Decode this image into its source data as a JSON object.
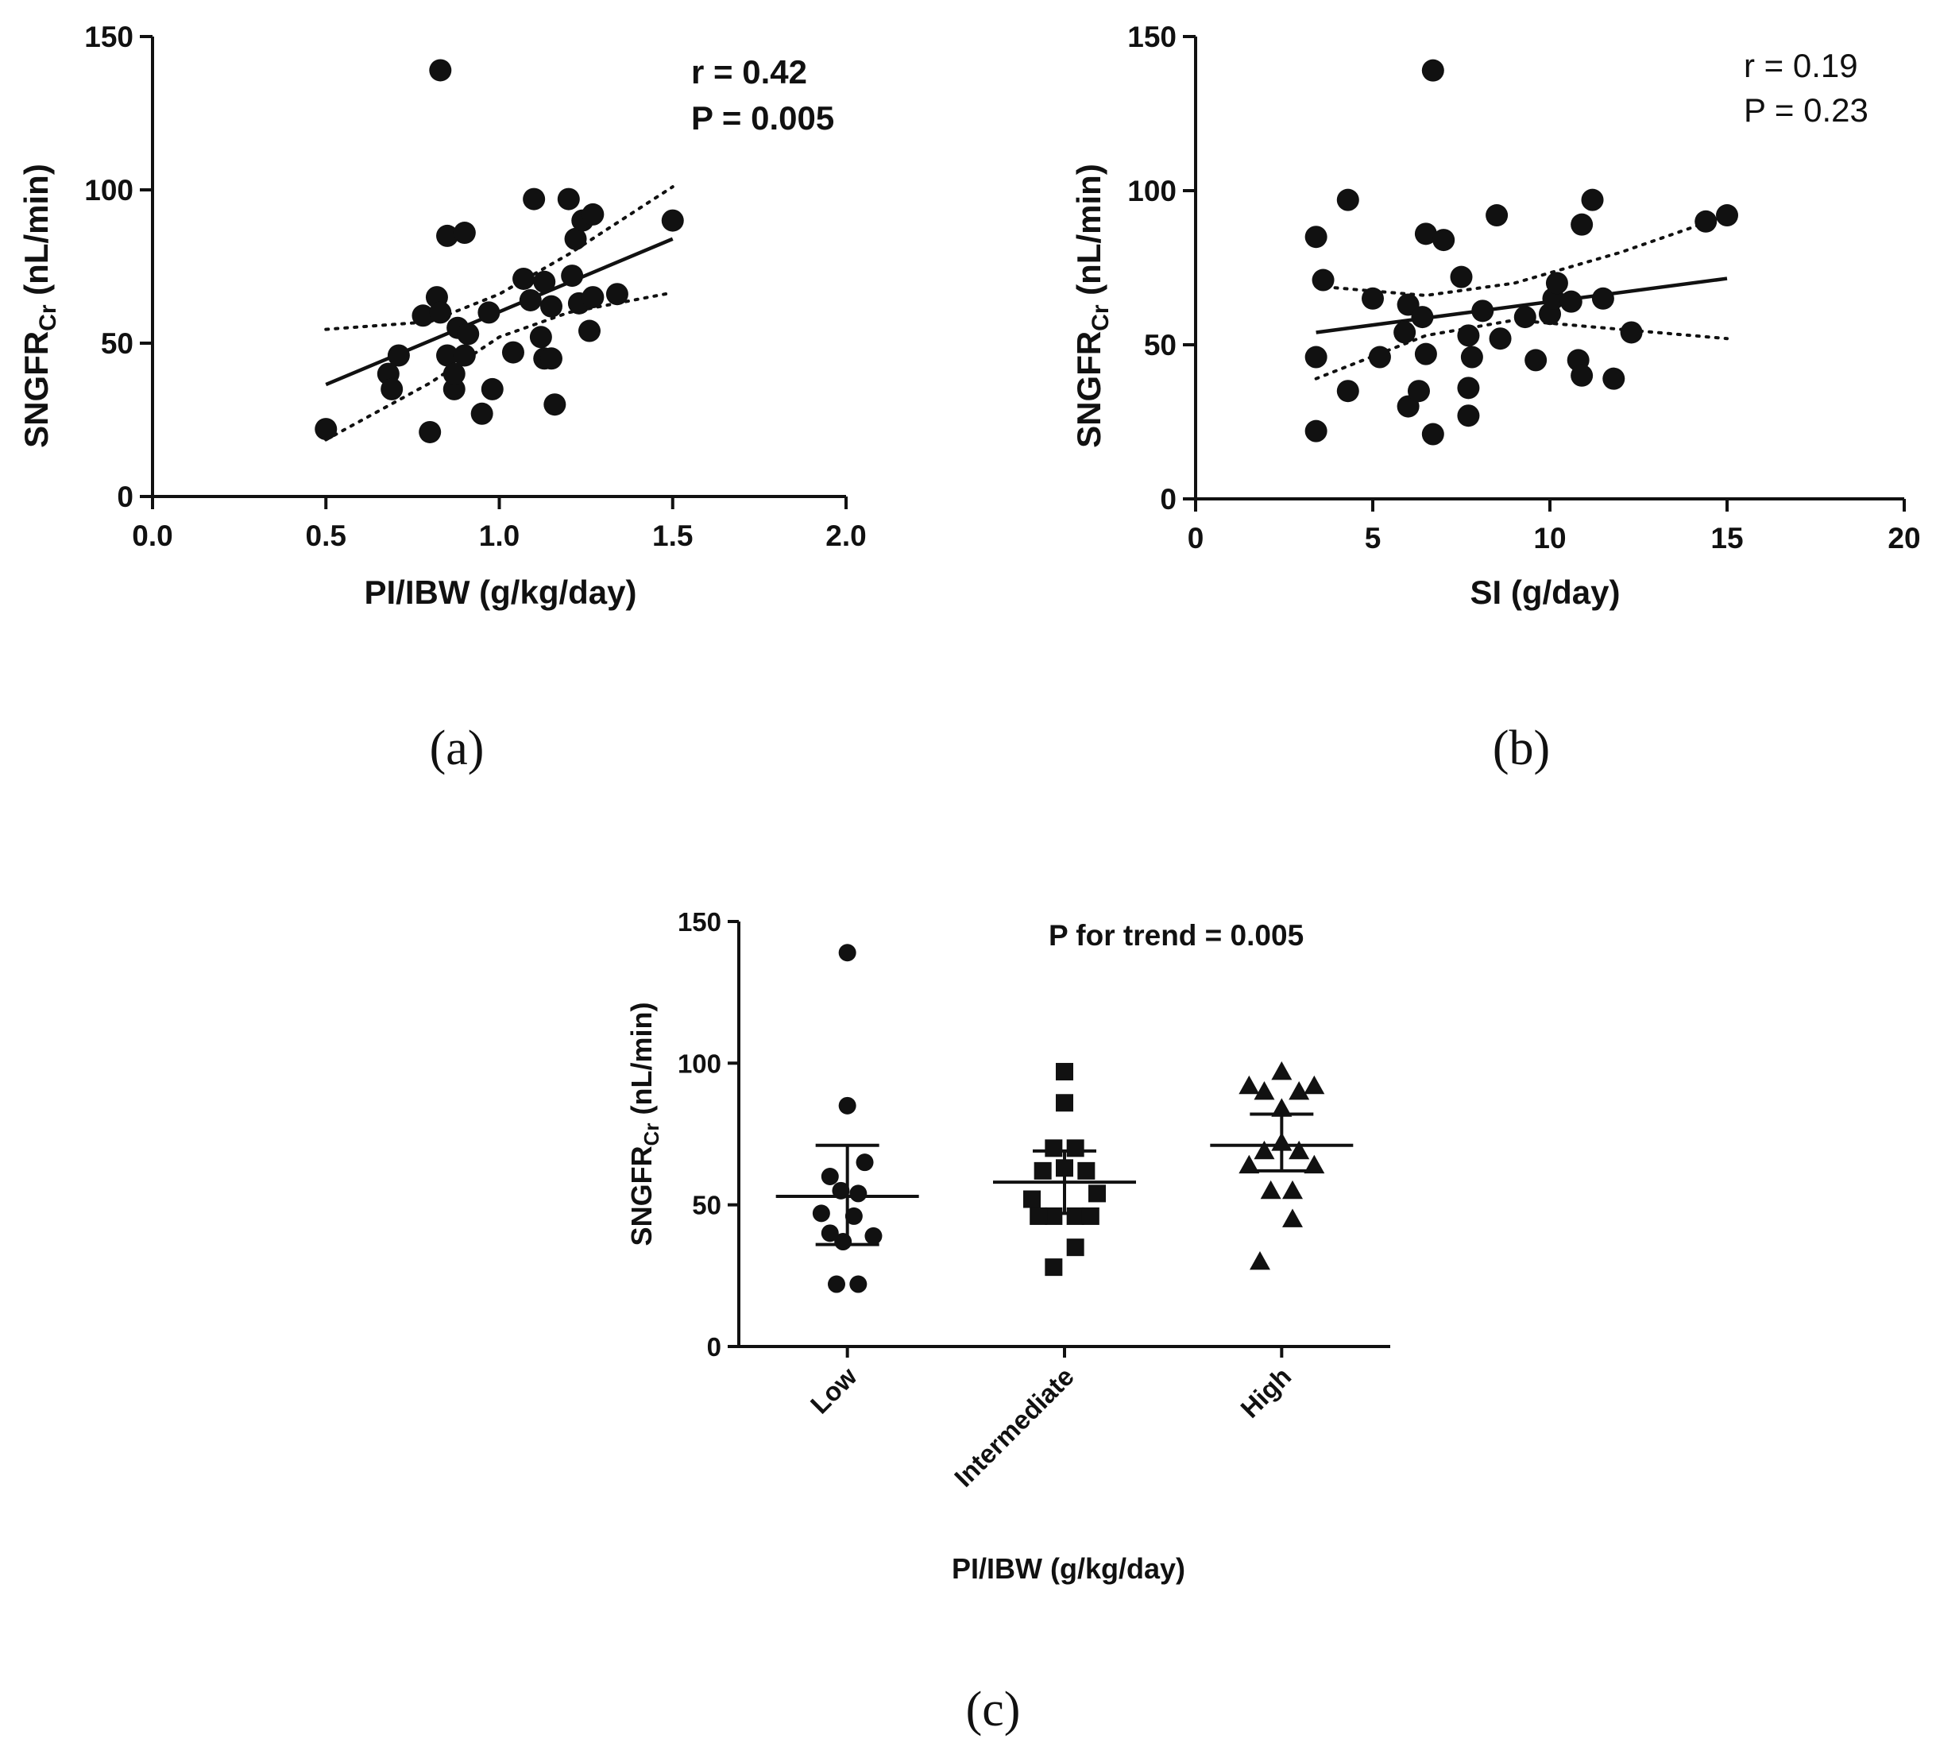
{
  "chart_data": [
    {
      "id": "a",
      "type": "scatter",
      "panel_label": "(a)",
      "xlabel": "PI/IBW (g/kg/day)",
      "ylabel_main": "SNGFR",
      "ylabel_sub": "Cr",
      "ylabel_unit": " (nL/min)",
      "xlim": [
        0.0,
        2.0
      ],
      "ylim": [
        0,
        150
      ],
      "xticks": [
        0.0,
        0.5,
        1.0,
        1.5,
        2.0
      ],
      "xtick_labels": [
        "0.0",
        "0.5",
        "1.0",
        "1.5",
        "2.0"
      ],
      "yticks": [
        0,
        50,
        100,
        150
      ],
      "ytick_labels": [
        "0",
        "50",
        "100",
        "150"
      ],
      "stats": [
        "r = 0.42",
        "P = 0.005"
      ],
      "stats_bold": true,
      "points": [
        [
          0.5,
          22
        ],
        [
          0.68,
          40
        ],
        [
          0.69,
          35
        ],
        [
          0.71,
          46
        ],
        [
          0.78,
          59
        ],
        [
          0.8,
          21
        ],
        [
          0.82,
          65
        ],
        [
          0.83,
          60
        ],
        [
          0.83,
          139
        ],
        [
          0.85,
          46
        ],
        [
          0.85,
          85
        ],
        [
          0.87,
          35
        ],
        [
          0.87,
          40
        ],
        [
          0.88,
          55
        ],
        [
          0.9,
          46
        ],
        [
          0.9,
          86
        ],
        [
          0.91,
          53
        ],
        [
          0.95,
          27
        ],
        [
          0.97,
          60
        ],
        [
          0.98,
          35
        ],
        [
          1.04,
          47
        ],
        [
          1.07,
          71
        ],
        [
          1.09,
          64
        ],
        [
          1.1,
          97
        ],
        [
          1.12,
          52
        ],
        [
          1.13,
          45
        ],
        [
          1.13,
          70
        ],
        [
          1.15,
          62
        ],
        [
          1.15,
          45
        ],
        [
          1.16,
          30
        ],
        [
          1.2,
          97
        ],
        [
          1.21,
          72
        ],
        [
          1.22,
          84
        ],
        [
          1.23,
          63
        ],
        [
          1.24,
          90
        ],
        [
          1.26,
          54
        ],
        [
          1.27,
          92
        ],
        [
          1.27,
          65
        ],
        [
          1.34,
          66
        ],
        [
          1.5,
          90
        ]
      ],
      "fit": [
        [
          0.5,
          36.5
        ],
        [
          1.5,
          84
        ]
      ],
      "ci_upper": [
        [
          0.5,
          54.5
        ],
        [
          0.8,
          57
        ],
        [
          1.0,
          66
        ],
        [
          1.2,
          79
        ],
        [
          1.5,
          101
        ]
      ],
      "ci_lower": [
        [
          0.5,
          18.5
        ],
        [
          0.8,
          37
        ],
        [
          1.0,
          52
        ],
        [
          1.2,
          60
        ],
        [
          1.5,
          66.5
        ]
      ]
    },
    {
      "id": "b",
      "type": "scatter",
      "panel_label": "(b)",
      "xlabel": "SI (g/day)",
      "ylabel_main": "SNGFR",
      "ylabel_sub": "Cr",
      "ylabel_unit": " (nL/min)",
      "xlim": [
        0,
        20
      ],
      "ylim": [
        0,
        150
      ],
      "xticks": [
        0,
        5,
        10,
        15,
        20
      ],
      "xtick_labels": [
        "0",
        "5",
        "10",
        "15",
        "20"
      ],
      "yticks": [
        0,
        50,
        100,
        150
      ],
      "ytick_labels": [
        "0",
        "50",
        "100",
        "150"
      ],
      "stats": [
        "r = 0.19",
        "P = 0.23"
      ],
      "stats_bold": false,
      "points": [
        [
          3.4,
          22
        ],
        [
          3.4,
          46
        ],
        [
          3.4,
          85
        ],
        [
          3.6,
          71
        ],
        [
          4.3,
          97
        ],
        [
          4.3,
          35
        ],
        [
          5.0,
          65
        ],
        [
          5.2,
          46
        ],
        [
          5.9,
          54
        ],
        [
          6.0,
          30
        ],
        [
          6.0,
          63
        ],
        [
          6.3,
          35
        ],
        [
          6.4,
          59
        ],
        [
          6.5,
          86
        ],
        [
          6.5,
          47
        ],
        [
          6.7,
          21
        ],
        [
          6.7,
          139
        ],
        [
          7.0,
          84
        ],
        [
          7.5,
          72
        ],
        [
          7.7,
          53
        ],
        [
          7.7,
          36
        ],
        [
          7.7,
          27
        ],
        [
          7.8,
          46
        ],
        [
          8.1,
          61
        ],
        [
          8.5,
          92
        ],
        [
          8.6,
          52
        ],
        [
          9.3,
          59
        ],
        [
          9.6,
          45
        ],
        [
          10.0,
          60
        ],
        [
          10.1,
          65
        ],
        [
          10.2,
          70
        ],
        [
          10.6,
          64
        ],
        [
          10.8,
          45
        ],
        [
          10.9,
          40
        ],
        [
          10.9,
          89
        ],
        [
          11.2,
          97
        ],
        [
          11.5,
          65
        ],
        [
          11.8,
          39
        ],
        [
          12.3,
          54
        ],
        [
          14.4,
          90
        ],
        [
          15.0,
          92
        ]
      ],
      "fit": [
        [
          3.4,
          54
        ],
        [
          15.0,
          71.5
        ]
      ],
      "ci_upper": [
        [
          3.4,
          69
        ],
        [
          6.5,
          66
        ],
        [
          9.0,
          70
        ],
        [
          12.0,
          80
        ],
        [
          15.0,
          92
        ]
      ],
      "ci_lower": [
        [
          3.4,
          39
        ],
        [
          6.5,
          53
        ],
        [
          9.0,
          58
        ],
        [
          12.0,
          55
        ],
        [
          15.0,
          52
        ]
      ]
    },
    {
      "id": "c",
      "type": "scatter",
      "panel_label": "(c)",
      "xlabel": "PI/IBW (g/kg/day)",
      "ylabel_main": "SNGFR",
      "ylabel_sub": "Cr",
      "ylabel_unit": " (nL/min)",
      "ylim": [
        0,
        150
      ],
      "yticks": [
        0,
        50,
        100,
        150
      ],
      "ytick_labels": [
        "0",
        "50",
        "100",
        "150"
      ],
      "stats": [
        "P for trend = 0.005"
      ],
      "stats_bold": true,
      "categories": [
        "Low",
        "Intermediate",
        "High"
      ],
      "groups": [
        {
          "name": "Low",
          "marker": "circle",
          "mean": 53,
          "err_low": 36,
          "err_high": 71,
          "points": [
            [
              -0.08,
              60
            ],
            [
              0.08,
              65
            ],
            [
              -0.03,
              55
            ],
            [
              0.05,
              54
            ],
            [
              -0.12,
              47
            ],
            [
              0.03,
              46
            ],
            [
              -0.08,
              40
            ],
            [
              0.12,
              39
            ],
            [
              -0.02,
              37
            ],
            [
              0.0,
              85
            ],
            [
              0.0,
              139
            ],
            [
              -0.05,
              22
            ],
            [
              0.05,
              22
            ]
          ]
        },
        {
          "name": "Intermediate",
          "marker": "square",
          "mean": 58,
          "err_low": 47,
          "err_high": 69,
          "points": [
            [
              0.0,
              97
            ],
            [
              0.0,
              86
            ],
            [
              -0.05,
              70
            ],
            [
              0.05,
              70
            ],
            [
              -0.1,
              62
            ],
            [
              0.0,
              63
            ],
            [
              0.1,
              62
            ],
            [
              -0.15,
              52
            ],
            [
              0.15,
              54
            ],
            [
              -0.05,
              46
            ],
            [
              0.05,
              46
            ],
            [
              -0.12,
              46
            ],
            [
              0.12,
              46
            ],
            [
              0.05,
              35
            ],
            [
              -0.05,
              28
            ]
          ]
        },
        {
          "name": "High",
          "marker": "triangle",
          "mean": 71,
          "err_low": 62,
          "err_high": 82,
          "points": [
            [
              -0.15,
              92
            ],
            [
              -0.08,
              90
            ],
            [
              0.0,
              97
            ],
            [
              0.08,
              90
            ],
            [
              0.15,
              92
            ],
            [
              0.0,
              84
            ],
            [
              -0.15,
              64
            ],
            [
              -0.08,
              69
            ],
            [
              0.0,
              72
            ],
            [
              0.08,
              69
            ],
            [
              0.15,
              64
            ],
            [
              -0.05,
              55
            ],
            [
              0.05,
              55
            ],
            [
              0.05,
              45
            ],
            [
              -0.1,
              30
            ]
          ]
        }
      ]
    }
  ]
}
